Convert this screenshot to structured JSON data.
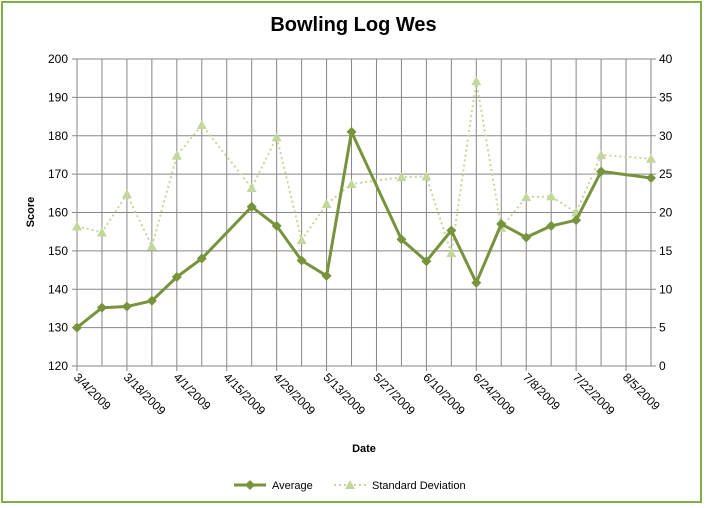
{
  "chart_data": {
    "type": "line",
    "title": "Bowling Log Wes",
    "xlabel": "Date",
    "ylabel": "Score",
    "ylim": [
      120,
      200
    ],
    "y2lim": [
      0,
      40
    ],
    "yticks": [
      "120",
      "130",
      "140",
      "150",
      "160",
      "170",
      "180",
      "190",
      "200"
    ],
    "y2ticks": [
      "0",
      "5",
      "10",
      "15",
      "20",
      "25",
      "30",
      "35",
      "40"
    ],
    "xticks": [
      "3/4/2009",
      "3/18/2009",
      "4/1/2009",
      "4/15/2009",
      "4/29/2009",
      "5/13/2009",
      "5/27/2009",
      "6/10/2009",
      "6/24/2009",
      "7/8/2009",
      "7/22/2009",
      "8/5/2009"
    ],
    "xlim": [
      "2009-03-04",
      "2009-08-12"
    ],
    "grid": true,
    "legend_position": "bottom",
    "series": [
      {
        "name": "Average",
        "axis": "left",
        "color": "#77933c",
        "marker": "diamond",
        "style": "solid",
        "x": [
          "2009-03-04",
          "2009-03-11",
          "2009-03-18",
          "2009-03-25",
          "2009-04-01",
          "2009-04-08",
          "2009-04-22",
          "2009-04-29",
          "2009-05-06",
          "2009-05-13",
          "2009-05-20",
          "2009-06-03",
          "2009-06-10",
          "2009-06-17",
          "2009-06-24",
          "2009-07-01",
          "2009-07-08",
          "2009-07-15",
          "2009-07-22",
          "2009-07-29",
          "2009-08-12"
        ],
        "values": [
          130,
          135.2,
          135.5,
          137,
          143.2,
          148,
          161.5,
          156.5,
          147.5,
          143.5,
          181,
          153,
          147.3,
          155.3,
          141.7,
          157,
          153.5,
          156.5,
          158,
          170.7,
          169
        ]
      },
      {
        "name": "Standard Deviation",
        "axis": "right",
        "color": "#c4d79b",
        "marker": "triangle",
        "style": "dotted",
        "x": [
          "2009-03-04",
          "2009-03-11",
          "2009-03-18",
          "2009-03-25",
          "2009-04-01",
          "2009-04-08",
          "2009-04-22",
          "2009-04-29",
          "2009-05-06",
          "2009-05-13",
          "2009-05-20",
          "2009-06-03",
          "2009-06-10",
          "2009-06-17",
          "2009-06-24",
          "2009-07-01",
          "2009-07-08",
          "2009-07-15",
          "2009-07-22",
          "2009-07-29",
          "2009-08-12"
        ],
        "values": [
          18.2,
          17.4,
          22.4,
          15.6,
          27.4,
          31.4,
          23.2,
          29.8,
          16.4,
          21.1,
          23.7,
          24.6,
          24.7,
          14.7,
          37.1,
          18,
          22,
          22.1,
          20,
          27.5,
          27
        ]
      }
    ]
  }
}
